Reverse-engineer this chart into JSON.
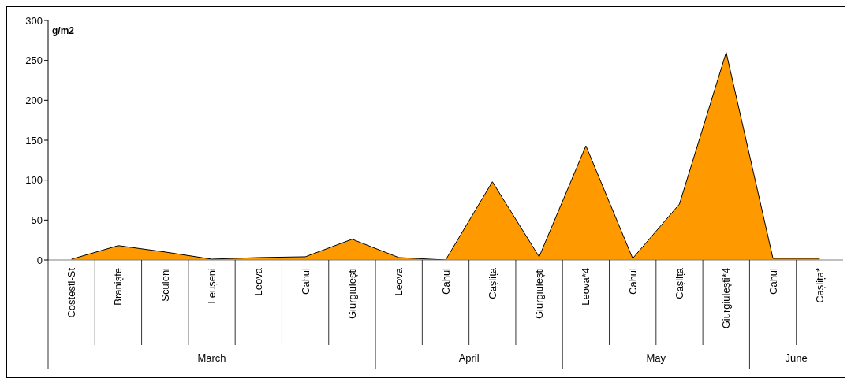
{
  "chart_data": {
    "type": "area",
    "ylabel": "g/m2",
    "categories": [
      "Costesti-St",
      "Braniște",
      "Sculeni",
      "Leușeni",
      "Leova",
      "Cahul",
      "Giurgiulești",
      "Leova",
      "Cahul",
      "Cașlița",
      "Giurgiulești",
      "Leova*4",
      "Cahul",
      "Cașlița",
      "Giurgiulești*4",
      "Cahul",
      "Cașlița*"
    ],
    "values": [
      1,
      18,
      10,
      1,
      3,
      4,
      26,
      3,
      0,
      98,
      4,
      143,
      2,
      70,
      260,
      2,
      2
    ],
    "color": "#ff9900",
    "ylim": [
      0,
      300
    ],
    "yticks": [
      0,
      50,
      100,
      150,
      200,
      250,
      300
    ],
    "annotations": [
      "March",
      "April",
      "May",
      "June"
    ]
  }
}
